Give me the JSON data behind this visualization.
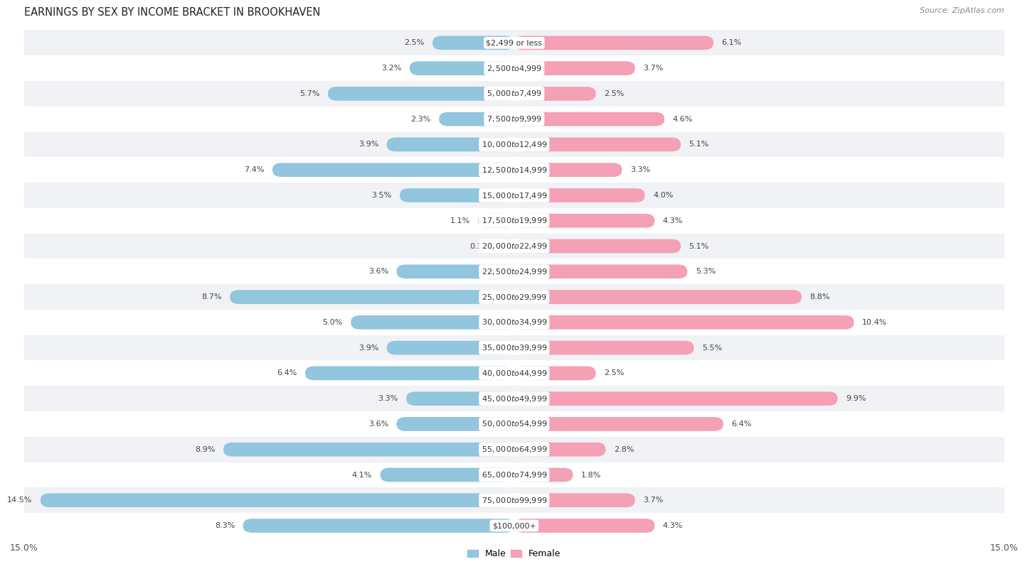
{
  "title": "EARNINGS BY SEX BY INCOME BRACKET IN BROOKHAVEN",
  "source": "Source: ZipAtlas.com",
  "categories": [
    "$2,499 or less",
    "$2,500 to $4,999",
    "$5,000 to $7,499",
    "$7,500 to $9,999",
    "$10,000 to $12,499",
    "$12,500 to $14,999",
    "$15,000 to $17,499",
    "$17,500 to $19,999",
    "$20,000 to $22,499",
    "$22,500 to $24,999",
    "$25,000 to $29,999",
    "$30,000 to $34,999",
    "$35,000 to $39,999",
    "$40,000 to $44,999",
    "$45,000 to $49,999",
    "$50,000 to $54,999",
    "$55,000 to $64,999",
    "$65,000 to $74,999",
    "$75,000 to $99,999",
    "$100,000+"
  ],
  "male_values": [
    2.5,
    3.2,
    5.7,
    2.3,
    3.9,
    7.4,
    3.5,
    1.1,
    0.35,
    3.6,
    8.7,
    5.0,
    3.9,
    6.4,
    3.3,
    3.6,
    8.9,
    4.1,
    14.5,
    8.3
  ],
  "female_values": [
    6.1,
    3.7,
    2.5,
    4.6,
    5.1,
    3.3,
    4.0,
    4.3,
    5.1,
    5.3,
    8.8,
    10.4,
    5.5,
    2.5,
    9.9,
    6.4,
    2.8,
    1.8,
    3.7,
    4.3
  ],
  "male_color": "#92c5de",
  "female_color": "#f4a0b5",
  "background_color": "#ffffff",
  "row_color_even": "#f0f2f5",
  "row_color_odd": "#ffffff",
  "axis_max": 15.0,
  "legend_male": "Male",
  "legend_female": "Female",
  "title_fontsize": 10.5,
  "label_fontsize": 8.0,
  "category_fontsize": 8.0,
  "source_fontsize": 8.0
}
